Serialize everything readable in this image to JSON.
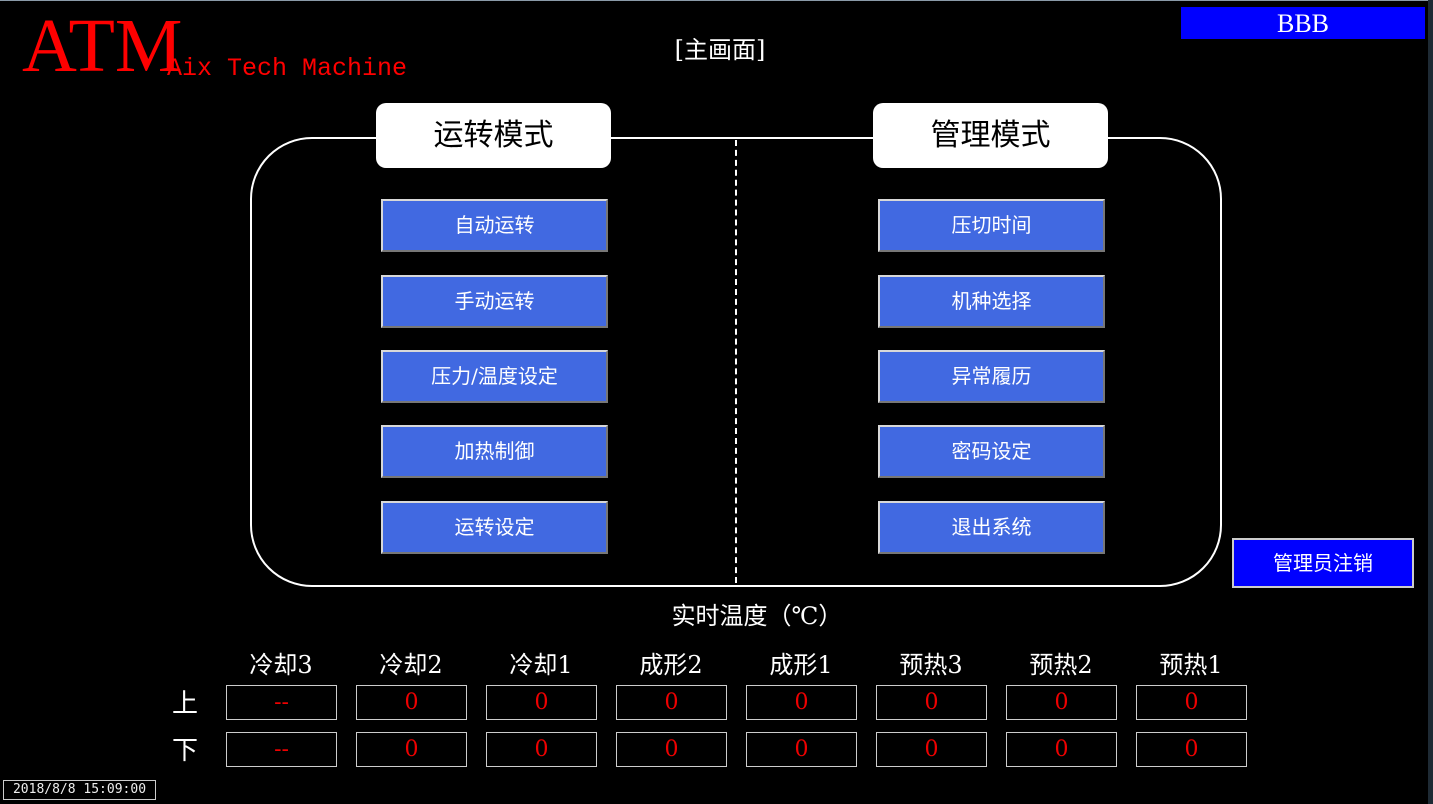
{
  "header": {
    "logo": "ATM",
    "subtitle": "Aix Tech Machine",
    "screen_title": "[主画面]",
    "user": "BBB"
  },
  "left_panel": {
    "title": "运转模式",
    "buttons": [
      "自动运转",
      "手动运转",
      "压力/温度设定",
      "加热制御",
      "运转设定"
    ]
  },
  "right_panel": {
    "title": "管理模式",
    "buttons": [
      "压切时间",
      "机种选择",
      "异常履历",
      "密码设定",
      "退出系统"
    ]
  },
  "logout_label": "管理员注销",
  "temperature": {
    "title": "实时温度（℃）",
    "columns": [
      "冷却3",
      "冷却2",
      "冷却1",
      "成形2",
      "成形1",
      "预热3",
      "预热2",
      "预热1"
    ],
    "rows": [
      {
        "label": "上",
        "values": [
          "--",
          "0",
          "0",
          "0",
          "0",
          "0",
          "0",
          "0"
        ]
      },
      {
        "label": "下",
        "values": [
          "--",
          "0",
          "0",
          "0",
          "0",
          "0",
          "0",
          "0"
        ]
      }
    ]
  },
  "timestamp": "2018/8/8 15:09:00"
}
